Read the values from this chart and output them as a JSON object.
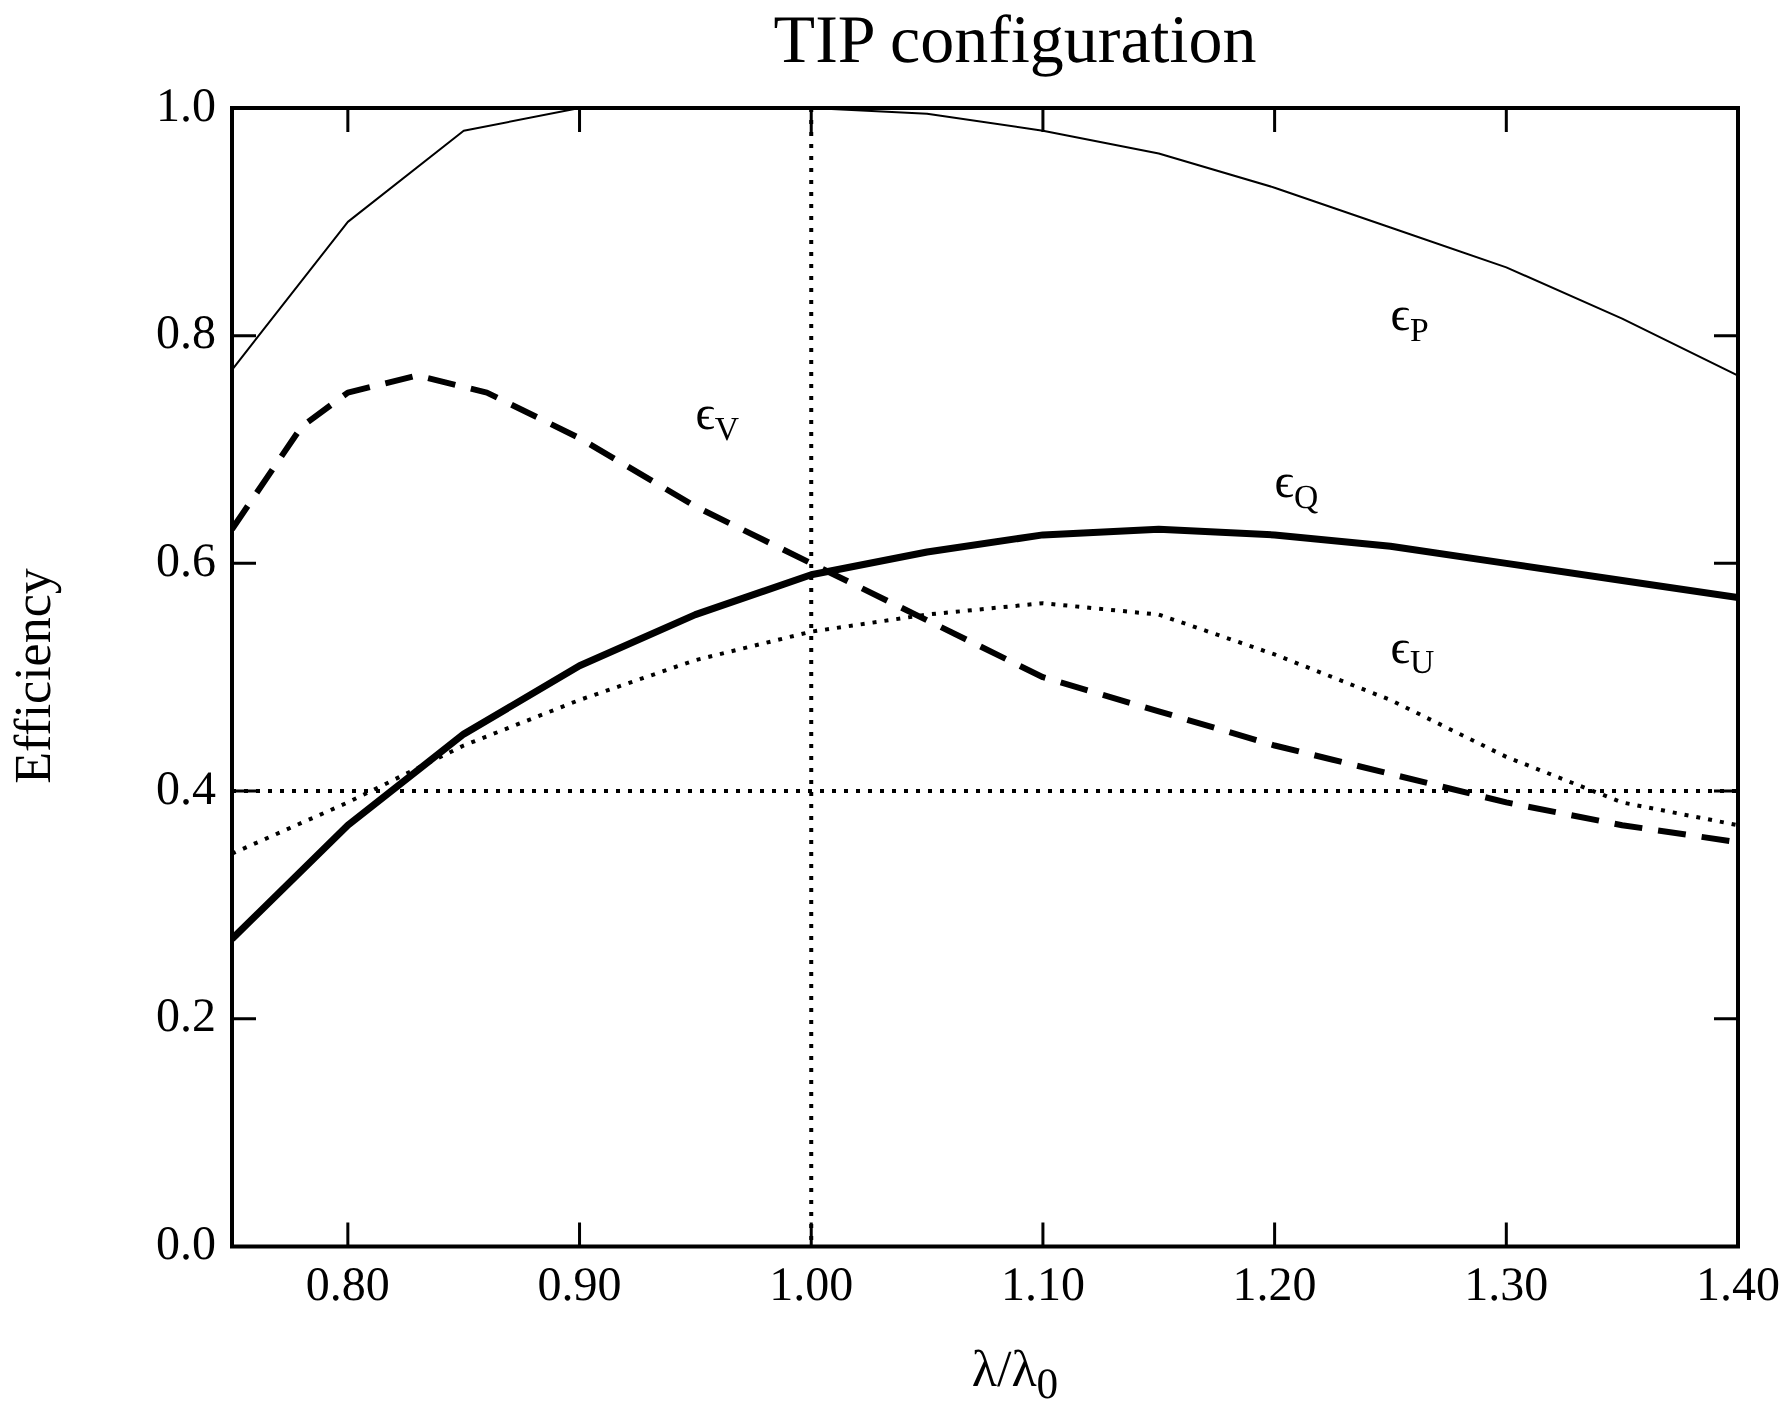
{
  "chart_data": {
    "type": "line",
    "title": "TIP configuration",
    "xlabel": "λ/λ$_{0}$",
    "ylabel": "Efficiency",
    "xlim": [
      0.75,
      1.4
    ],
    "xticks": [
      {
        "value": 0.8,
        "label": "0.80"
      },
      {
        "value": 0.9,
        "label": "0.90"
      },
      {
        "value": 1.0,
        "label": "1.00"
      },
      {
        "value": 1.1,
        "label": "1.10"
      },
      {
        "value": 1.2,
        "label": "1.20"
      },
      {
        "value": 1.3,
        "label": "1.30"
      },
      {
        "value": 1.4,
        "label": "1.40"
      }
    ],
    "ylim": [
      0,
      1.0
    ],
    "yticks": [
      {
        "value": 0,
        "label": "0.0"
      },
      {
        "value": 0.2,
        "label": "0.2"
      },
      {
        "value": 0.4,
        "label": "0.4"
      },
      {
        "value": 0.6,
        "label": "0.6"
      },
      {
        "value": 0.8,
        "label": "0.8"
      },
      {
        "value": 1.0,
        "label": "1.0"
      }
    ],
    "x": [
      0.75,
      0.8,
      0.85,
      0.9,
      0.95,
      1.0,
      1.05,
      1.1,
      1.15,
      1.2,
      1.25,
      1.3,
      1.35,
      1.4
    ],
    "grid": false,
    "marker": "none",
    "series": [
      {
        "name": "ϵ$_{P}$",
        "color": "#000000",
        "line_style": "solid",
        "values": [
          0.77,
          0.9,
          0.98,
          1.0,
          1.0,
          1.0,
          0.995,
          0.98,
          0.96,
          0.93,
          0.895,
          0.86,
          0.815,
          0.765
        ]
      },
      {
        "name": "ϵ$_{V}$",
        "color": "#000000",
        "line_style": "dashed",
        "x": [
          0.75,
          0.78,
          0.8,
          0.83,
          0.86,
          0.9,
          0.95,
          1.0,
          1.05,
          1.1,
          1.15,
          1.2,
          1.25,
          1.3,
          1.35,
          1.4
        ],
        "values": [
          0.63,
          0.72,
          0.75,
          0.765,
          0.75,
          0.71,
          0.65,
          0.6,
          0.55,
          0.5,
          0.47,
          0.44,
          0.415,
          0.39,
          0.37,
          0.355
        ]
      },
      {
        "name": "ϵ$_{Q}$",
        "color": "#000000",
        "line_style": "solid",
        "values": [
          0.27,
          0.37,
          0.45,
          0.51,
          0.555,
          0.59,
          0.61,
          0.625,
          0.63,
          0.625,
          0.615,
          0.6,
          0.585,
          0.57
        ]
      },
      {
        "name": "ϵ$_{U}$",
        "color": "#000000",
        "line_style": "dotted",
        "values": [
          0.345,
          0.39,
          0.44,
          0.48,
          0.515,
          0.54,
          0.555,
          0.565,
          0.555,
          0.52,
          0.48,
          0.43,
          0.39,
          0.37
        ]
      }
    ],
    "ref_lines": [
      {
        "axis": "x",
        "value": 1.0,
        "line_style": "dotted"
      },
      {
        "axis": "y",
        "value": 0.4,
        "line_style": "dotted"
      }
    ]
  }
}
